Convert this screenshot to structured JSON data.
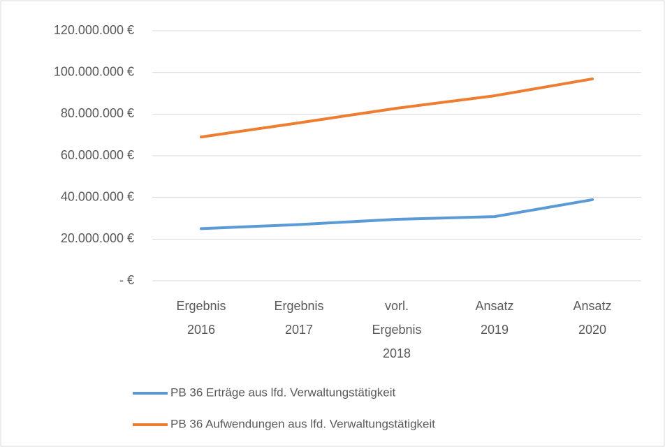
{
  "chart_data": {
    "type": "line",
    "categories": [
      "Ergebnis 2016",
      "Ergebnis 2017",
      "vorl. Ergebnis 2018",
      "Ansatz 2019",
      "Ansatz 2020"
    ],
    "series": [
      {
        "name": "PB 36 Erträge aus lfd. Verwaltungstätigkeit",
        "color": "#5b9bd5",
        "values": [
          25000000,
          27000000,
          29500000,
          30800000,
          38900000
        ]
      },
      {
        "name": "PB 36 Aufwendungen aus lfd. Verwaltungstätigkeit",
        "color": "#ed7d31",
        "values": [
          69000000,
          75800000,
          82800000,
          88800000,
          96900000
        ]
      }
    ],
    "ylim": [
      0,
      120000000
    ],
    "yticks": [
      {
        "value": 0,
        "label": "-   €"
      },
      {
        "value": 20000000,
        "label": "20.000.000 €"
      },
      {
        "value": 40000000,
        "label": "40.000.000 €"
      },
      {
        "value": 60000000,
        "label": "60.000.000 €"
      },
      {
        "value": 80000000,
        "label": "80.000.000 €"
      },
      {
        "value": 100000000,
        "label": "100.000.000 €"
      },
      {
        "value": 120000000,
        "label": "120.000.000 €"
      }
    ],
    "grid": true,
    "legend": "bottom"
  }
}
